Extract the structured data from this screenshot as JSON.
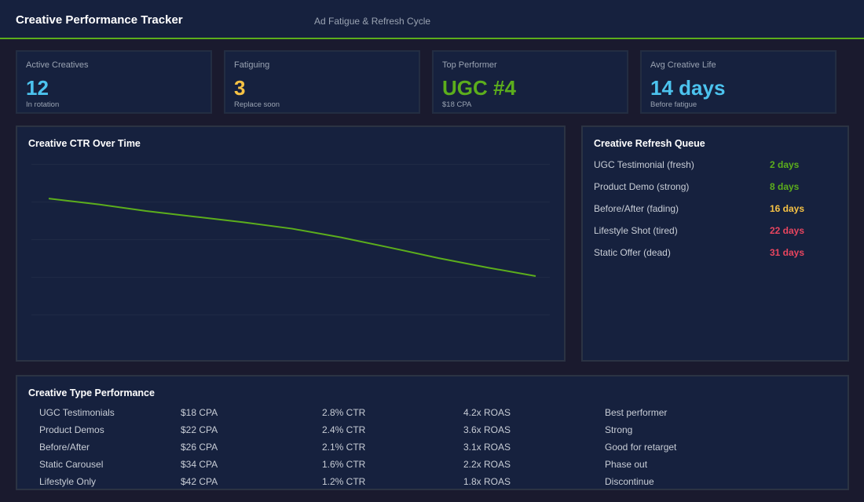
{
  "header": {
    "title": "Creative Performance Tracker",
    "subtitle": "Ad Fatigue & Refresh Cycle"
  },
  "colors": {
    "accent_green": "#5cae1c",
    "blue": "#4cc3ee",
    "yellow": "#f6c244",
    "red": "#e8455f",
    "panel": "#16213e",
    "background": "#1a1a2e"
  },
  "cards": [
    {
      "label": "Active Creatives",
      "value": "12",
      "sub": "In rotation",
      "color": "#4cc3ee"
    },
    {
      "label": "Fatiguing",
      "value": "3",
      "sub": "Replace soon",
      "color": "#f6c244"
    },
    {
      "label": "Top Performer",
      "value": "UGC #4",
      "sub": "$18 CPA",
      "color": "#5cae1c"
    },
    {
      "label": "Avg Creative Life",
      "value": "14 days",
      "sub": "Before fatigue",
      "color": "#4cc3ee"
    }
  ],
  "chart_data": {
    "type": "line",
    "title": "Creative CTR Over Time",
    "x": [
      1,
      2,
      3,
      4,
      5,
      6,
      7,
      8,
      9,
      10,
      11
    ],
    "series": [
      {
        "values": [
          4.08,
          3.93,
          3.75,
          3.6,
          3.45,
          3.28,
          3.05,
          2.78,
          2.5,
          2.25,
          2.02
        ],
        "color": "#5cae1c"
      }
    ],
    "ylim": [
      0,
      5
    ],
    "grid": true,
    "axes_labels_shown": false
  },
  "queue": {
    "title": "Creative Refresh Queue",
    "items": [
      {
        "name": "UGC Testimonial (fresh)",
        "days": "2 days",
        "color": "#5cae1c"
      },
      {
        "name": "Product Demo (strong)",
        "days": "8 days",
        "color": "#5cae1c"
      },
      {
        "name": "Before/After (fading)",
        "days": "16 days",
        "color": "#f6c244"
      },
      {
        "name": "Lifestyle Shot (tired)",
        "days": "22 days",
        "color": "#e8455f"
      },
      {
        "name": "Static Offer (dead)",
        "days": "31 days",
        "color": "#e8455f"
      }
    ]
  },
  "table": {
    "title": "Creative Type Performance",
    "rows": [
      {
        "type": "UGC Testimonials",
        "cpa": "$18 CPA",
        "ctr": "2.8% CTR",
        "roas": "4.2x ROAS",
        "note": "Best performer"
      },
      {
        "type": "Product Demos",
        "cpa": "$22 CPA",
        "ctr": "2.4% CTR",
        "roas": "3.6x ROAS",
        "note": "Strong"
      },
      {
        "type": "Before/After",
        "cpa": "$26 CPA",
        "ctr": "2.1% CTR",
        "roas": "3.1x ROAS",
        "note": "Good for retarget"
      },
      {
        "type": "Static Carousel",
        "cpa": "$34 CPA",
        "ctr": "1.6% CTR",
        "roas": "2.2x ROAS",
        "note": "Phase out"
      },
      {
        "type": "Lifestyle Only",
        "cpa": "$42 CPA",
        "ctr": "1.2% CTR",
        "roas": "1.8x ROAS",
        "note": "Discontinue"
      }
    ]
  }
}
